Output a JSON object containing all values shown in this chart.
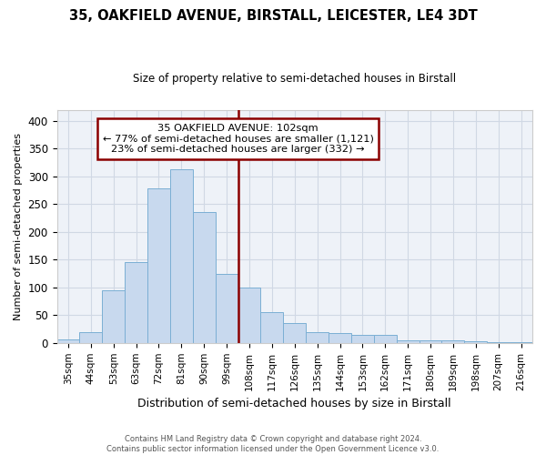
{
  "title": "35, OAKFIELD AVENUE, BIRSTALL, LEICESTER, LE4 3DT",
  "subtitle": "Size of property relative to semi-detached houses in Birstall",
  "xlabel": "Distribution of semi-detached houses by size in Birstall",
  "ylabel": "Number of semi-detached properties",
  "footnote1": "Contains HM Land Registry data © Crown copyright and database right 2024.",
  "footnote2": "Contains public sector information licensed under the Open Government Licence v3.0.",
  "bar_labels": [
    "35sqm",
    "44sqm",
    "53sqm",
    "63sqm",
    "72sqm",
    "81sqm",
    "90sqm",
    "99sqm",
    "108sqm",
    "117sqm",
    "126sqm",
    "135sqm",
    "144sqm",
    "153sqm",
    "162sqm",
    "171sqm",
    "180sqm",
    "189sqm",
    "198sqm",
    "207sqm",
    "216sqm"
  ],
  "bar_values": [
    7,
    20,
    95,
    145,
    278,
    312,
    235,
    125,
    100,
    55,
    35,
    20,
    18,
    15,
    14,
    5,
    5,
    4,
    3,
    2,
    2
  ],
  "bar_color": "#c8d9ee",
  "bar_edge_color": "#7bafd4",
  "property_line_value": 7.5,
  "property_sqm": 102,
  "pct_smaller": 77,
  "count_smaller": 1121,
  "pct_larger": 23,
  "count_larger": 332,
  "annotation_title": "35 OAKFIELD AVENUE: 102sqm",
  "box_color": "#8b0000",
  "ylim": [
    0,
    420
  ],
  "yticks": [
    0,
    50,
    100,
    150,
    200,
    250,
    300,
    350,
    400
  ],
  "grid_color": "#d0d8e4",
  "background_color": "#eef2f8"
}
